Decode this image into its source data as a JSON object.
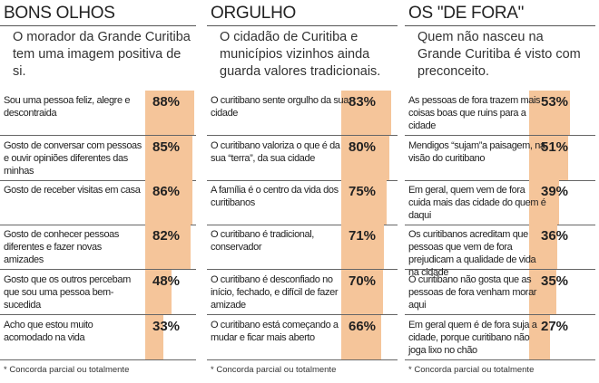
{
  "bar_color": "#f5c59a",
  "chart_data": [
    {
      "type": "bar",
      "title": "BONS OLHOS",
      "subtitle": "O morador da Grande Curitiba tem uma imagem positiva de si.",
      "footnote": "* Concorda parcial ou totalmente",
      "categories": [
        "Sou uma pessoa feliz, alegre e descontraida",
        "Gosto de conversar com pessoas e ouvir opiniões diferentes das minhas",
        "Gosto de receber visitas em casa",
        "Gosto de conhecer pessoas diferentes e fazer novas amizades",
        "Gosto que os outros percebam que sou uma pessoa bem-sucedida",
        "Acho que estou muito acomodado na vida"
      ],
      "values": [
        88,
        85,
        86,
        82,
        48,
        33
      ],
      "labels": [
        "88%",
        "85%",
        "86%",
        "82%",
        "48%",
        "33%"
      ]
    },
    {
      "type": "bar",
      "title": "ORGULHO",
      "subtitle": "O cidadão de Curitiba e municípios vizinhos ainda guarda valores tradicionais.",
      "footnote": "* Concorda parcial ou totalmente",
      "categories": [
        "O curitibano sente orgulho da sua cidade",
        "O curitibano valoriza o que é da sua “terra”, da sua cidade",
        "A família é o centro da vida dos curitibanos",
        "O curitibano é tradicional, conservador",
        "O curitibano é desconfiado no início, fechado, e difícil de fazer amizade",
        "O curitibano está começando a mudar e ficar mais aberto"
      ],
      "values": [
        83,
        80,
        75,
        71,
        70,
        66
      ],
      "labels": [
        "83%",
        "80%",
        "75%",
        "71%",
        "70%",
        "66%"
      ]
    },
    {
      "type": "bar",
      "title": "OS \"DE FORA\"",
      "subtitle": "Quem não nasceu na Grande Curitiba é visto com preconceito.",
      "footnote": "* Concorda parcial ou totalmente",
      "categories": [
        "As pessoas de fora trazem mais coisas boas que ruins para a cidade",
        "Mendigos “sujam”a paisagem, na visão do curitibano",
        "Em geral, quem vem de fora cuida mais das cidade do quem é daqui",
        "Os curitibanos acreditam que pessoas que vem de fora prejudicam a qualidade de vida na cidade",
        "O curitibano não gosta que as pessoas de fora venham morar aqui",
        "Em geral quem é de fora suja a cidade, porque curitibano não joga lixo no chão"
      ],
      "values": [
        53,
        51,
        39,
        36,
        35,
        27
      ],
      "labels": [
        "53%",
        "51%",
        "39%",
        "36%",
        "35%",
        "27%"
      ]
    }
  ]
}
